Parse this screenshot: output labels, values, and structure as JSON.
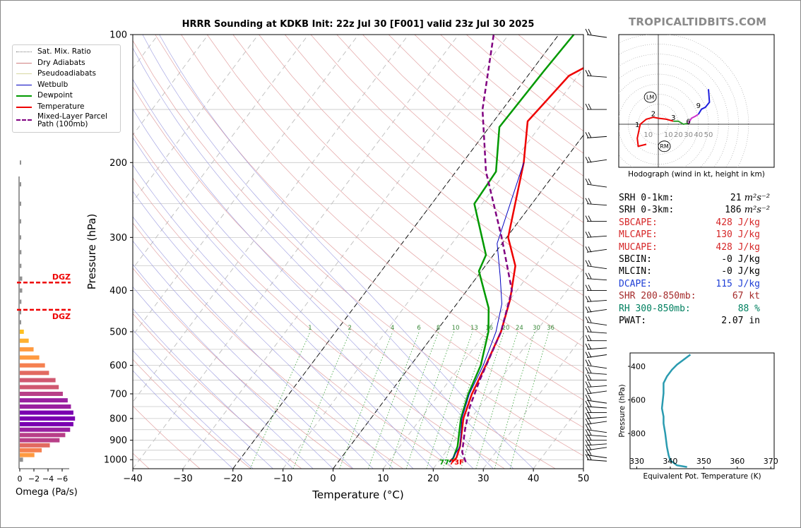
{
  "brand": "TROPICALTIDBITS.COM",
  "chart_data": [
    {
      "type": "line",
      "name": "skew-t",
      "title": "HRRR Sounding at KDKB Init: 22z Jul 30 [F001] valid 23z Jul 30 2025",
      "xlabel": "Temperature (°C)",
      "ylabel": "Pressure (hPa)",
      "xlim": [
        -40,
        50
      ],
      "ylim": [
        1050,
        100
      ],
      "y_scale": "log",
      "x_ticks": [
        -40,
        -30,
        -20,
        -10,
        0,
        10,
        20,
        30,
        40,
        50
      ],
      "y_ticks": [
        100,
        200,
        300,
        400,
        500,
        600,
        700,
        800,
        900,
        1000
      ],
      "grid": true,
      "legend": {
        "placement": "upper-left",
        "entries": [
          {
            "label": "Sat. Mix. Ratio",
            "color": "#7a7a7a",
            "style": "dotted"
          },
          {
            "label": "Dry Adiabats",
            "color": "#d08080",
            "style": "solid"
          },
          {
            "label": "Pseudoadiabats",
            "color": "#d8d8a0",
            "style": "solid"
          },
          {
            "label": "Wetbulb",
            "color": "#0000c0",
            "style": "solid"
          },
          {
            "label": "Dewpoint",
            "color": "#009900",
            "style": "solid"
          },
          {
            "label": "Temperature",
            "color": "#ee0000",
            "style": "solid"
          },
          {
            "label": "Mixed-Layer Parcel Path (100mb)",
            "color": "#800080",
            "style": "dashed"
          }
        ]
      },
      "series": [
        {
          "name": "Temperature",
          "color": "#ee0000",
          "points": [
            [
              22.8,
              1013
            ],
            [
              23,
              990
            ],
            [
              22,
              930
            ],
            [
              18.5,
              800
            ],
            [
              16.5,
              700
            ],
            [
              15,
              600
            ],
            [
              13,
              500
            ],
            [
              10,
              420
            ],
            [
              6,
              350
            ],
            [
              0.3,
              300
            ],
            [
              -7.8,
              200
            ],
            [
              -13.2,
              160
            ],
            [
              -11.8,
              125
            ],
            [
              -2.5,
              100
            ]
          ]
        },
        {
          "name": "Dewpoint",
          "color": "#009900",
          "points": [
            [
              22.2,
              1013
            ],
            [
              22.4,
              990
            ],
            [
              21.5,
              930
            ],
            [
              18,
              800
            ],
            [
              15.8,
              700
            ],
            [
              14,
              600
            ],
            [
              10.5,
              500
            ],
            [
              7,
              440
            ],
            [
              -0.5,
              360
            ],
            [
              -1.5,
              330
            ],
            [
              -11.5,
              250
            ],
            [
              -12,
              210
            ],
            [
              -18,
              165
            ],
            [
              -17.5,
              122
            ],
            [
              -17,
              100
            ]
          ]
        },
        {
          "name": "Wetbulb",
          "color": "#0000c0",
          "points": [
            [
              22.4,
              1013
            ],
            [
              22,
              930
            ],
            [
              18.2,
              800
            ],
            [
              16,
              700
            ],
            [
              14.5,
              600
            ],
            [
              12,
              500
            ],
            [
              9,
              430
            ],
            [
              4.5,
              370
            ],
            [
              -1,
              310
            ],
            [
              -7.8,
              200
            ]
          ]
        },
        {
          "name": "Mixed-Layer Parcel Path (100mb)",
          "color": "#800080",
          "points": [
            [
              25.5,
              1013
            ],
            [
              23.3,
              960
            ],
            [
              20.5,
              850
            ],
            [
              18,
              750
            ],
            [
              16,
              650
            ],
            [
              13,
              500
            ],
            [
              9,
              400
            ],
            [
              -1,
              300
            ],
            [
              -14,
              210
            ],
            [
              -24,
              150
            ],
            [
              -33,
              100
            ]
          ]
        }
      ],
      "surface_label": "77",
      "surface_temp_label": "73F",
      "mixing_ratio_labels": [
        "1",
        "2",
        "4",
        "6",
        "8",
        "10",
        "13",
        "16",
        "20",
        "24",
        "30",
        "36"
      ]
    },
    {
      "type": "bar",
      "name": "omega-profile",
      "xlabel": "Omega (Pa/s)",
      "x_ticks": [
        "0",
        "−2",
        "−4",
        "−6"
      ],
      "xlim": [
        0,
        -8
      ],
      "pressure_levels": [
        1000,
        975,
        950,
        925,
        900,
        875,
        850,
        825,
        800,
        775,
        750,
        725,
        700,
        675,
        650,
        625,
        600,
        575,
        550,
        525,
        500,
        475,
        450,
        425,
        400,
        375,
        350,
        325,
        300,
        275,
        250,
        225,
        200
      ],
      "values": [
        -0.4,
        -1.8,
        -2.7,
        -3.7,
        -4.9,
        -5.6,
        -6.2,
        -6.6,
        -6.8,
        -6.6,
        -6.3,
        -5.9,
        -5.3,
        -4.8,
        -4.4,
        -3.6,
        -3.1,
        -2.4,
        -1.7,
        -1.1,
        -0.5,
        -0.1,
        -0.05,
        -0.2,
        -0.3,
        -0.3,
        -0.2,
        -0.2,
        -0.15,
        -0.1,
        -0.1,
        -0.1,
        -0.05
      ],
      "dgz_label": "DGZ",
      "dgz_levels": [
        383,
        444
      ]
    },
    {
      "type": "line",
      "name": "hodograph",
      "caption": "Hodograph (wind in kt, height in km)",
      "x_ticks": [
        "10",
        "10",
        "20",
        "30",
        "40",
        "50"
      ],
      "height_labels": [
        "1",
        "2",
        "3",
        "6",
        "9"
      ],
      "markers": [
        "LM",
        "RM"
      ],
      "segments": [
        {
          "color": "#ee0000",
          "points": [
            [
              -12,
              -20
            ],
            [
              -20,
              -22
            ],
            [
              -21,
              -14
            ],
            [
              -18,
              0
            ],
            [
              -12,
              5
            ],
            [
              -5,
              7
            ],
            [
              0,
              6
            ],
            [
              8,
              5
            ],
            [
              15,
              3
            ]
          ]
        },
        {
          "color": "#2ca02c",
          "points": [
            [
              15,
              3
            ],
            [
              20,
              3
            ],
            [
              25,
              0
            ],
            [
              30,
              1
            ]
          ]
        },
        {
          "color": "#cc33cc",
          "points": [
            [
              30,
              1
            ],
            [
              33,
              6
            ],
            [
              37,
              8
            ],
            [
              40,
              10
            ]
          ]
        },
        {
          "color": "#1f1fdd",
          "points": [
            [
              40,
              10
            ],
            [
              43,
              15
            ],
            [
              47,
              17
            ],
            [
              51,
              22
            ],
            [
              50,
              35
            ]
          ]
        }
      ]
    },
    {
      "type": "line",
      "name": "theta-e-profile",
      "xlabel": "Equivalent Pot. Temperature (K)",
      "ylabel": "Pressure (hPa)",
      "x_ticks": [
        330,
        340,
        350,
        360,
        370
      ],
      "y_ticks": [
        400,
        600,
        800
      ],
      "xlim": [
        328,
        371
      ],
      "ylim": [
        1010,
        320
      ],
      "series": [
        {
          "name": "theta-e",
          "color": "#2a9bb0",
          "points": [
            [
              345,
              1000
            ],
            [
              342,
              990
            ],
            [
              340,
              960
            ],
            [
              339.5,
              930
            ],
            [
              339,
              880
            ],
            [
              338.5,
              800
            ],
            [
              338,
              740
            ],
            [
              338,
              700
            ],
            [
              337.5,
              650
            ],
            [
              338,
              560
            ],
            [
              338,
              500
            ],
            [
              339,
              460
            ],
            [
              340.5,
              420
            ],
            [
              342,
              390
            ],
            [
              344,
              360
            ],
            [
              346,
              330
            ]
          ]
        }
      ]
    }
  ],
  "stats": [
    {
      "label": "SRH 0-1km:",
      "value": "21",
      "unit": "m²s⁻²",
      "color": "#000000"
    },
    {
      "label": "SRH 0-3km:",
      "value": "186",
      "unit": "m²s⁻²",
      "color": "#000000"
    },
    {
      "label": "SBCAPE:",
      "value": "428 J/kg",
      "color": "#d62728"
    },
    {
      "label": "MLCAPE:",
      "value": "130 J/kg",
      "color": "#d62728"
    },
    {
      "label": "MUCAPE:",
      "value": "428 J/kg",
      "color": "#d62728"
    },
    {
      "label": "SBCIN:",
      "value": "-0 J/kg",
      "color": "#000000"
    },
    {
      "label": "MLCIN:",
      "value": "-0 J/kg",
      "color": "#000000"
    },
    {
      "label": "DCAPE:",
      "value": "115 J/kg",
      "color": "#1f3fd6"
    },
    {
      "label": "SHR 200-850mb:",
      "value": "67 kt",
      "color": "#a52a2a"
    },
    {
      "label": "RH 300-850mb:",
      "value": "88 %",
      "color": "#008060"
    },
    {
      "label": "PWAT:",
      "value": "2.07 in",
      "color": "#000000"
    }
  ]
}
